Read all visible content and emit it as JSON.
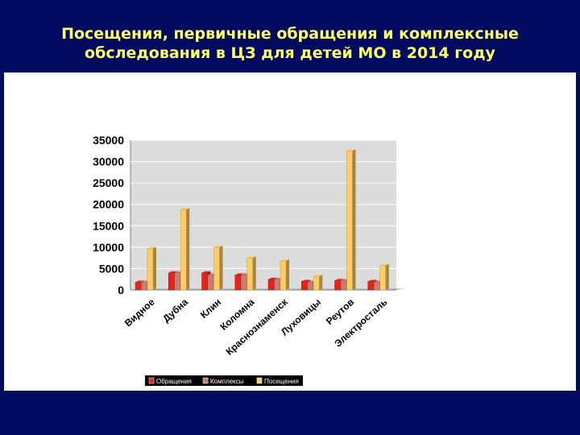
{
  "slide": {
    "title_line1": "Посещения, первичные обращения и комплексные",
    "title_line2": "обследования в ЦЗ для детей МО в 2014 году"
  },
  "colors": {
    "background": "#000a5e",
    "title": "#ffff66",
    "plot_area": "#dcdcdc",
    "legend_bg": "#000000"
  },
  "chart_data": {
    "type": "bar",
    "title": "",
    "xlabel": "",
    "ylabel": "",
    "ylim": [
      0,
      35000
    ],
    "yticks": [
      0,
      5000,
      10000,
      15000,
      20000,
      25000,
      30000,
      35000
    ],
    "grid": true,
    "legend_position": "bottom",
    "categories": [
      "Видное",
      "Дубна",
      "Клин",
      "Коломна",
      "Краснознаменск",
      "Луховицы",
      "Реутов",
      "Электросталь"
    ],
    "series": [
      {
        "name": "Обращения",
        "color": "#e8231f",
        "values": [
          1800,
          4000,
          4000,
          3500,
          2500,
          2000,
          2200,
          2000
        ]
      },
      {
        "name": "Комплексы",
        "color": "#c87f6f",
        "values": [
          1800,
          4000,
          3500,
          3500,
          2500,
          1800,
          2200,
          1800
        ]
      },
      {
        "name": "Посещения",
        "color": "#ffcc66",
        "values": [
          9700,
          18800,
          10000,
          7500,
          6800,
          3200,
          32500,
          5700
        ]
      }
    ]
  }
}
